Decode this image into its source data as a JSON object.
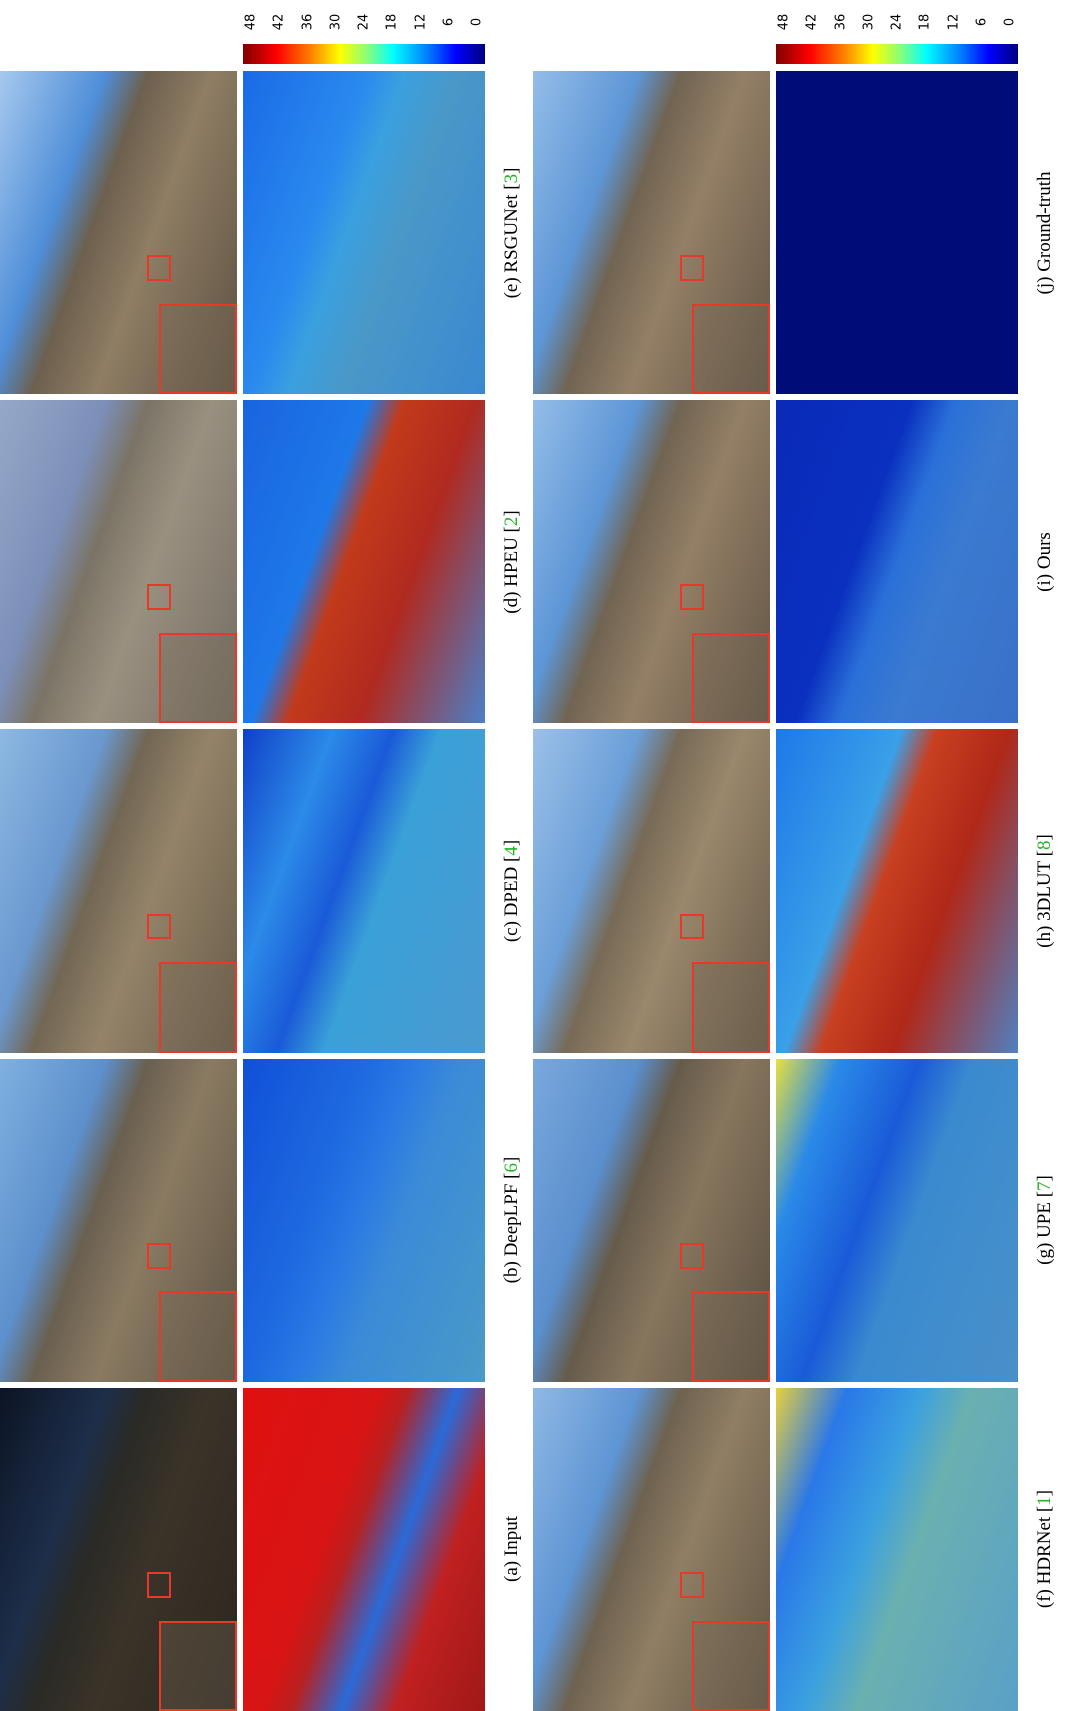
{
  "groups": [
    {
      "colorbar": {
        "ticks": [
          48,
          42,
          36,
          30,
          24,
          18,
          12,
          6,
          0
        ]
      },
      "panels": [
        {
          "caption": {
            "prefix": "(a) Input"
          }
        },
        {
          "caption": {
            "prefix": "(b) DeepLPF [",
            "ref": "6",
            "suffix": "]"
          }
        },
        {
          "caption": {
            "prefix": "(c) DPED [",
            "ref": "4",
            "suffix": "]"
          }
        },
        {
          "caption": {
            "prefix": "(d) HPEU [",
            "ref": "2",
            "suffix": "]"
          }
        },
        {
          "caption": {
            "prefix": "(e) RSGUNet [",
            "ref": "3",
            "suffix": "]"
          }
        }
      ]
    },
    {
      "colorbar": {
        "ticks": [
          48,
          42,
          36,
          30,
          24,
          18,
          12,
          6,
          0
        ]
      },
      "panels": [
        {
          "caption": {
            "prefix": "(f) HDRNet [",
            "ref": "1",
            "suffix": "]"
          }
        },
        {
          "caption": {
            "prefix": "(g) UPE [",
            "ref": "7",
            "suffix": "]"
          }
        },
        {
          "caption": {
            "prefix": "(h) 3DLUT [",
            "ref": "8",
            "suffix": "]"
          }
        },
        {
          "caption": {
            "prefix": "(i) Ours"
          }
        },
        {
          "caption": {
            "prefix": "(j) Ground-truth"
          }
        }
      ]
    }
  ]
}
